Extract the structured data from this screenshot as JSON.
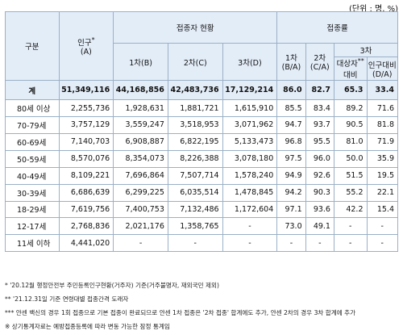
{
  "unit": "(단위 : 명, %)",
  "headers": {
    "group": "구분",
    "population": "인구",
    "population_sup": "*",
    "population_sub": "(A)",
    "status": "접종자 현황",
    "dose1": "1차(B)",
    "dose2": "2차(C)",
    "dose3": "3차(D)",
    "rate": "접종률",
    "rate1": "1차",
    "rate1_sub": "(B/A)",
    "rate2": "2차",
    "rate2_sub": "(C/A)",
    "rate3": "3차",
    "rate3_target": "대상자",
    "rate3_target_sup": "**",
    "rate3_target_sub": "대비",
    "rate3_pop": "인구대비",
    "rate3_pop_sub": "(D/A)"
  },
  "total": [
    "계",
    "51,349,116",
    "44,168,856",
    "42,483,736",
    "17,129,214",
    "86.0",
    "82.7",
    "65.3",
    "33.4"
  ],
  "rows": [
    [
      "80세 이상",
      "2,255,736",
      "1,928,631",
      "1,881,721",
      "1,615,910",
      "85.5",
      "83.4",
      "89.2",
      "71.6"
    ],
    [
      "70-79세",
      "3,757,129",
      "3,559,247",
      "3,518,953",
      "3,071,962",
      "94.7",
      "93.7",
      "90.5",
      "81.8"
    ],
    [
      "60-69세",
      "7,140,703",
      "6,908,887",
      "6,822,195",
      "5,133,473",
      "96.8",
      "95.5",
      "81.0",
      "71.9"
    ],
    [
      "50-59세",
      "8,570,076",
      "8,354,073",
      "8,226,388",
      "3,078,180",
      "97.5",
      "96.0",
      "50.0",
      "35.9"
    ],
    [
      "40-49세",
      "8,109,221",
      "7,696,864",
      "7,507,714",
      "1,578,240",
      "94.9",
      "92.6",
      "51.5",
      "19.5"
    ],
    [
      "30-39세",
      "6,686,639",
      "6,299,225",
      "6,035,514",
      "1,478,845",
      "94.2",
      "90.3",
      "55.2",
      "22.1"
    ],
    [
      "18-29세",
      "7,619,756",
      "7,400,753",
      "7,132,486",
      "1,172,604",
      "97.1",
      "93.6",
      "42.2",
      "15.4"
    ],
    [
      "12-17세",
      "2,768,836",
      "2,021,176",
      "1,358,765",
      "-",
      "73.0",
      "49.1",
      "-",
      "-"
    ],
    [
      "11세 이하",
      "4,441,020",
      "-",
      "-",
      "-",
      "-",
      "-",
      "-",
      "-"
    ]
  ],
  "notes": [
    "* '20.12월 행정안전부 주민등록인구현황(거주자) 기준(거주불명자, 재외국민 제외)",
    "** '21.12.31일 기준 연령대별 접종간격 도래자",
    "*** 얀센 백신의 경우 1회 접종으로 기본 접종이 완료되므로 얀센 1차 접종은 '2차 접종' 합계에도 추가, 얀센 2차의 경우 3차 합계에 추가",
    "※ 상기통계자료는 예방접종등록에 따라 변동 가능한 잠정 통계임"
  ]
}
